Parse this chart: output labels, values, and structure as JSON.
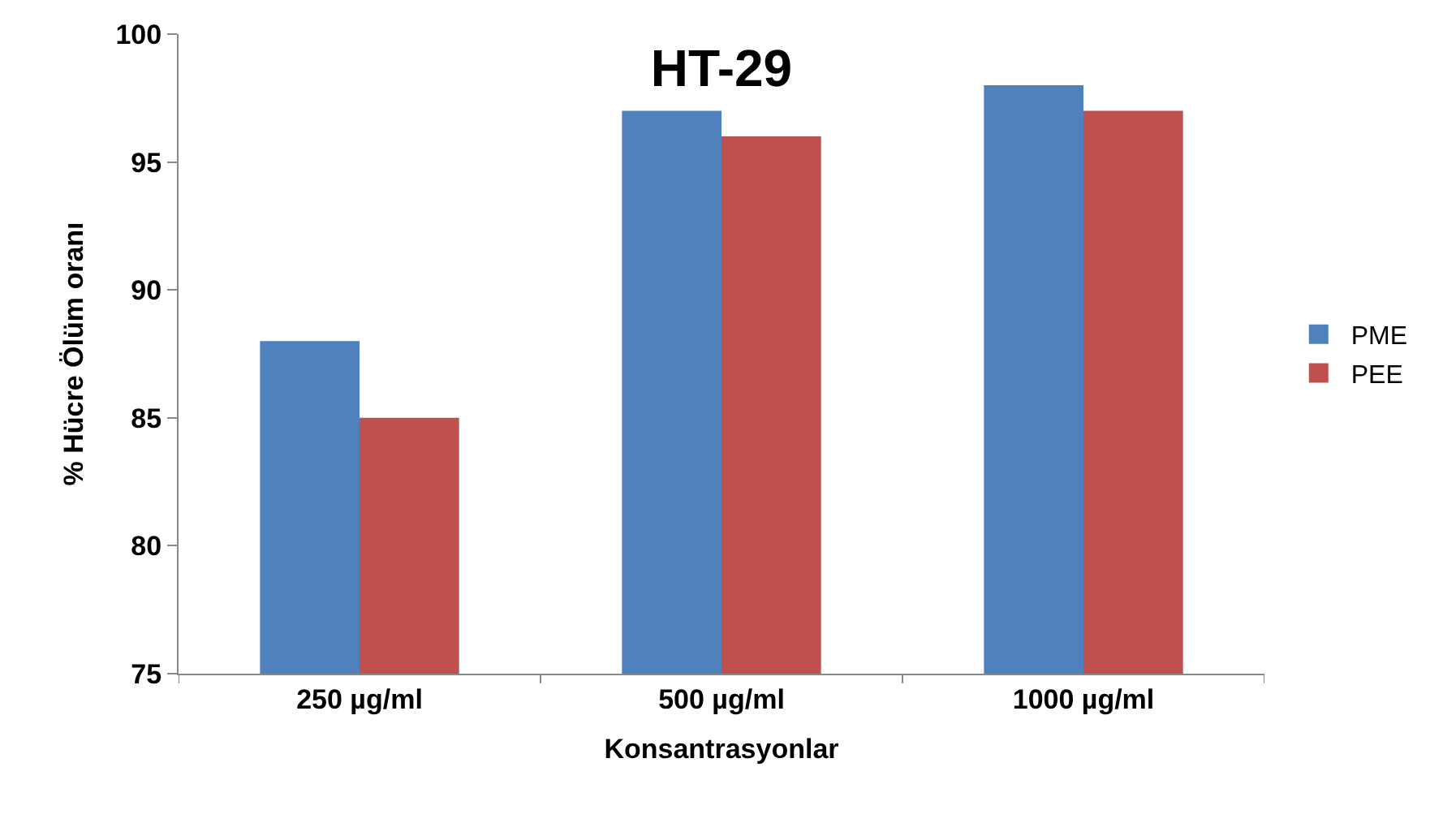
{
  "chart_data": {
    "type": "bar",
    "title": "HT-29",
    "xlabel": "Konsantrasyonlar",
    "ylabel": "% Hücre Ölüm oranı",
    "categories": [
      "250 µg/ml",
      "500 µg/ml",
      "1000 µg/ml"
    ],
    "series": [
      {
        "name": "PME",
        "color": "#4f81bd",
        "values": [
          88,
          97,
          98
        ]
      },
      {
        "name": "PEE",
        "color": "#c0504d",
        "values": [
          85,
          96,
          97
        ]
      }
    ],
    "ylim": [
      75,
      100
    ],
    "yticks": [
      75,
      80,
      85,
      90,
      95,
      100
    ],
    "legend": "right"
  }
}
